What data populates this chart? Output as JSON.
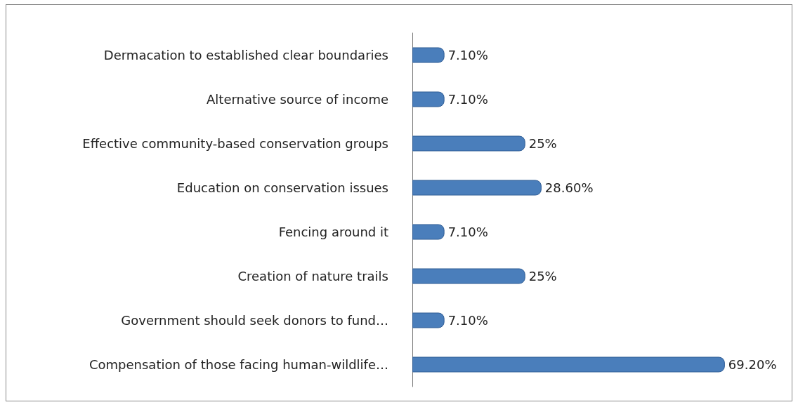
{
  "chart_data": {
    "type": "bar",
    "orientation": "horizontal",
    "categories": [
      "Dermacation to established clear boundaries",
      "Alternative source of income",
      "Effective community-based conservation groups",
      "Education on conservation issues",
      "Fencing around it",
      "Creation of nature trails",
      "Government should seek donors to fund…",
      "Compensation of those facing human-wildlife…"
    ],
    "values": [
      7.1,
      7.1,
      25,
      28.6,
      7.1,
      25,
      7.1,
      69.2
    ],
    "value_labels": [
      "7.10%",
      "7.10%",
      "25%",
      "28.60%",
      "7.10%",
      "25%",
      "7.10%",
      "69.20%"
    ],
    "color": "#4a7ebb"
  }
}
